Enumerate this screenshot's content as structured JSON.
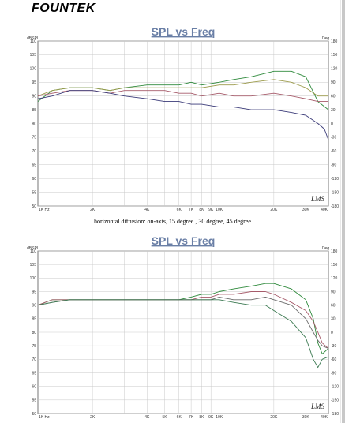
{
  "brand": {
    "logo_text": "FOUNTEK"
  },
  "caption": "horizontal diffusion: on-axis, 15 degree , 30 degree, 45 degree",
  "chart_data": [
    {
      "type": "line",
      "title": "SPL vs Freq",
      "ylabel_left": "dBSPL",
      "ylabel_right": "Deg",
      "x_scale": "log",
      "xlim": [
        1000,
        40000
      ],
      "ylim": [
        50,
        110
      ],
      "y2lim": [
        -180,
        180
      ],
      "x_ticks": [
        1000,
        2000,
        3000,
        4000,
        5000,
        6000,
        7000,
        8000,
        9000,
        10000,
        20000,
        30000,
        40000
      ],
      "x_tick_labels": [
        "1K Hz",
        "2K",
        "",
        "4K",
        "",
        "6K",
        "7K",
        "8K",
        "9K",
        "10K",
        "20K",
        "30K",
        "40K"
      ],
      "y_ticks": [
        50,
        55,
        60,
        65,
        70,
        75,
        80,
        85,
        90,
        95,
        100,
        105,
        110
      ],
      "y2_ticks": [
        -180,
        -150,
        -120,
        -90,
        -60,
        -30,
        0,
        30,
        60,
        90,
        120,
        150,
        180
      ],
      "grid": true,
      "signature": "LMS",
      "series": [
        {
          "color": "#2f8a3c",
          "x": [
            1000,
            1200,
            1500,
            2000,
            2500,
            3000,
            4000,
            5000,
            6000,
            7000,
            8000,
            10000,
            12000,
            15000,
            20000,
            25000,
            30000,
            35000,
            40000
          ],
          "y": [
            88,
            92,
            93,
            93,
            92,
            93,
            94,
            94,
            94,
            95,
            94,
            95,
            96,
            97,
            99,
            99,
            97,
            88,
            85
          ]
        },
        {
          "color": "#9b9a4a",
          "x": [
            1000,
            1200,
            1500,
            2000,
            2500,
            3000,
            4000,
            5000,
            6000,
            7000,
            8000,
            10000,
            12000,
            15000,
            20000,
            25000,
            30000,
            35000,
            40000
          ],
          "y": [
            90,
            92,
            93,
            93,
            92,
            93,
            93,
            93,
            93,
            93,
            93,
            94,
            94,
            95,
            96,
            95,
            93,
            90,
            90
          ]
        },
        {
          "color": "#a65b6a",
          "x": [
            1000,
            1200,
            1500,
            2000,
            2500,
            3000,
            4000,
            5000,
            6000,
            7000,
            8000,
            10000,
            12000,
            15000,
            20000,
            25000,
            30000,
            35000,
            40000
          ],
          "y": [
            90,
            91,
            92,
            92,
            91,
            92,
            92,
            92,
            91,
            91,
            90,
            91,
            90,
            90,
            91,
            90,
            89,
            88,
            88
          ]
        },
        {
          "color": "#3a3a78",
          "x": [
            1000,
            1200,
            1500,
            2000,
            2500,
            3000,
            4000,
            5000,
            6000,
            7000,
            8000,
            10000,
            12000,
            15000,
            20000,
            25000,
            30000,
            35000,
            38000,
            40000
          ],
          "y": [
            89,
            90,
            92,
            92,
            91,
            90,
            89,
            88,
            88,
            87,
            87,
            86,
            86,
            85,
            85,
            84,
            83,
            80,
            78,
            74
          ]
        }
      ]
    },
    {
      "type": "line",
      "title": "SPL vs Freq",
      "ylabel_left": "dBSPL",
      "ylabel_right": "Deg",
      "x_scale": "log",
      "xlim": [
        1000,
        40000
      ],
      "ylim": [
        50,
        110
      ],
      "y2lim": [
        -180,
        180
      ],
      "x_ticks": [
        1000,
        2000,
        3000,
        4000,
        5000,
        6000,
        7000,
        8000,
        9000,
        10000,
        20000,
        30000,
        40000
      ],
      "x_tick_labels": [
        "1K Hz",
        "2K",
        "",
        "4K",
        "5K",
        "6K",
        "7K",
        "8K",
        "9K",
        "10K",
        "20K",
        "30K",
        "40K"
      ],
      "y_ticks": [
        50,
        55,
        60,
        65,
        70,
        75,
        80,
        85,
        90,
        95,
        100,
        105,
        110
      ],
      "y2_ticks": [
        -180,
        -150,
        -120,
        -90,
        -60,
        -30,
        0,
        30,
        60,
        90,
        120,
        150,
        180
      ],
      "grid": true,
      "signature": "LMS",
      "series": [
        {
          "color": "#2f8a3c",
          "x": [
            1000,
            1200,
            1500,
            2000,
            3000,
            4000,
            5000,
            6000,
            7000,
            8000,
            9000,
            10000,
            12000,
            15000,
            18000,
            20000,
            25000,
            30000,
            33000,
            35000,
            37000,
            40000
          ],
          "y": [
            90,
            92,
            92,
            92,
            92,
            92,
            92,
            92,
            93,
            94,
            94,
            95,
            96,
            97,
            98,
            98,
            96,
            92,
            85,
            76,
            72,
            74
          ]
        },
        {
          "color": "#a65b6a",
          "x": [
            1000,
            1200,
            1500,
            2000,
            3000,
            4000,
            5000,
            6000,
            7000,
            8000,
            9000,
            10000,
            12000,
            15000,
            18000,
            20000,
            25000,
            30000,
            33000,
            35000,
            37000,
            40000
          ],
          "y": [
            90,
            92,
            92,
            92,
            92,
            92,
            92,
            92,
            92,
            93,
            93,
            94,
            94,
            95,
            95,
            94,
            91,
            88,
            84,
            80,
            76,
            74
          ]
        },
        {
          "color": "#6b6b6b",
          "x": [
            1000,
            1200,
            1500,
            2000,
            3000,
            4000,
            5000,
            6000,
            7000,
            8000,
            9000,
            10000,
            12000,
            15000,
            18000,
            20000,
            25000,
            30000,
            33000,
            35000,
            37000,
            40000
          ],
          "y": [
            90,
            91,
            92,
            92,
            92,
            92,
            92,
            92,
            92,
            92,
            92,
            93,
            92,
            92,
            93,
            92,
            90,
            85,
            80,
            77,
            75,
            74
          ]
        },
        {
          "color": "#3c7a52",
          "x": [
            1000,
            1200,
            1500,
            2000,
            3000,
            4000,
            5000,
            6000,
            7000,
            8000,
            9000,
            10000,
            12000,
            15000,
            18000,
            20000,
            25000,
            30000,
            33000,
            35000,
            37000,
            40000
          ],
          "y": [
            90,
            91,
            92,
            92,
            92,
            92,
            92,
            92,
            92,
            92,
            92,
            92,
            91,
            90,
            90,
            88,
            84,
            78,
            70,
            67,
            70,
            71
          ]
        }
      ]
    }
  ]
}
